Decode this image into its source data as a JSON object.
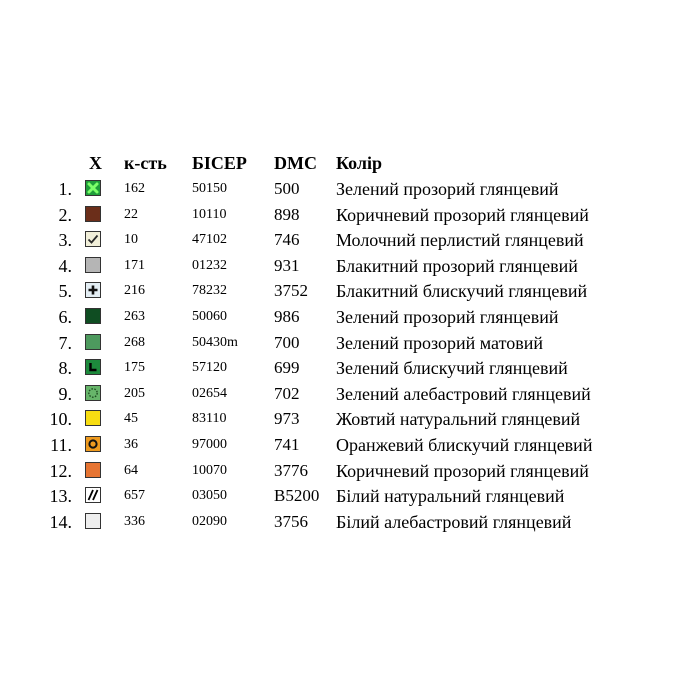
{
  "headers": {
    "symbol": "X",
    "quantity": "к-сть",
    "bead": "БІСЕР",
    "dmc": "DMC",
    "color": "Колір"
  },
  "rows": [
    {
      "num": "1.",
      "swatch": "#1f9e3a",
      "icon": "x-icon",
      "qty": "162",
      "bead": "50150",
      "dmc": "500",
      "color": "Зелений прозорий глянцевий"
    },
    {
      "num": "2.",
      "swatch": "#6b2e1a",
      "icon": "",
      "qty": "22",
      "bead": "10110",
      "dmc": "898",
      "color": "Коричневий прозорий глянцевий"
    },
    {
      "num": "3.",
      "swatch": "#f1efd9",
      "icon": "checkmark-icon",
      "qty": "10",
      "bead": "47102",
      "dmc": "746",
      "color": "Молочний перлистий  глянцевий"
    },
    {
      "num": "4.",
      "swatch": "#b5b5b5",
      "icon": "",
      "qty": "171",
      "bead": "01232",
      "dmc": "931",
      "color": "Блакитний прозорий  глянцевий"
    },
    {
      "num": "5.",
      "swatch": "#e4eef4",
      "icon": "plus-icon",
      "qty": "216",
      "bead": "78232",
      "dmc": "3752",
      "color": "Блакитний блискучий  глянцевий"
    },
    {
      "num": "6.",
      "swatch": "#0f4d22",
      "icon": "",
      "qty": "263",
      "bead": "50060",
      "dmc": "986",
      "color": "Зелений прозорий  глянцевий"
    },
    {
      "num": "7.",
      "swatch": "#4d9a5e",
      "icon": "",
      "qty": "268",
      "bead": "50430m",
      "dmc": "700",
      "color": "Зелений прозорий  матовий"
    },
    {
      "num": "8.",
      "swatch": "#1d8a3c",
      "icon": "corner-l-icon",
      "qty": "175",
      "bead": "57120",
      "dmc": "699",
      "color": "Зелений блискучий глянцевий"
    },
    {
      "num": "9.",
      "swatch": "#67b56a",
      "icon": "dotted-circle-icon",
      "qty": "205",
      "bead": "02654",
      "dmc": "702",
      "color": "Зелений алебастровий глянцевий"
    },
    {
      "num": "10.",
      "swatch": "#f7dd12",
      "icon": "",
      "qty": "45",
      "bead": "83110",
      "dmc": "973",
      "color": "Жовтий натуральний глянцевий"
    },
    {
      "num": "11.",
      "swatch": "#ee9a1f",
      "icon": "ring-icon",
      "qty": "36",
      "bead": "97000",
      "dmc": "741",
      "color": "Оранжевий блискучий глянцевий"
    },
    {
      "num": "12.",
      "swatch": "#e67432",
      "icon": "",
      "qty": "64",
      "bead": "10070",
      "dmc": "3776",
      "color": "Коричневий прозорий глянцевий"
    },
    {
      "num": "13.",
      "swatch": "#ffffff",
      "icon": "double-slash-icon",
      "qty": "657",
      "bead": "03050",
      "dmc": "B5200",
      "color": "Білий натуральний глянцевий"
    },
    {
      "num": "14.",
      "swatch": "#eeeeee",
      "icon": "",
      "qty": "336",
      "bead": "02090",
      "dmc": "3756",
      "color": "Білий алебастровий глянцевий"
    }
  ]
}
